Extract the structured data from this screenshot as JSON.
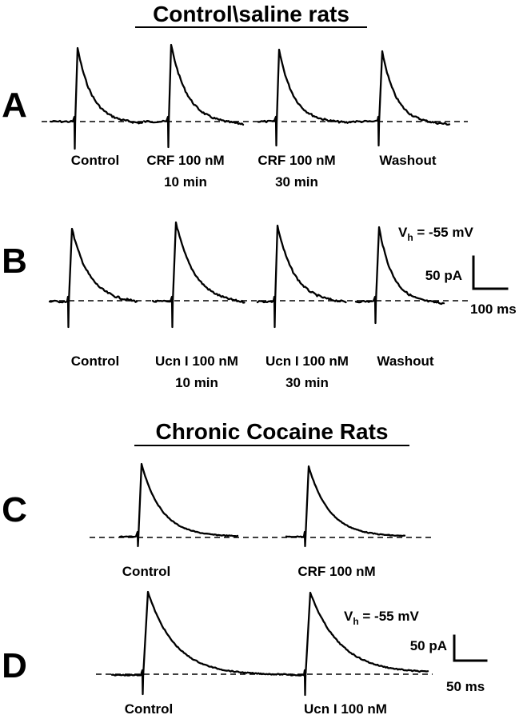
{
  "sections": [
    {
      "title": "Control\\saline rats",
      "panels": [
        {
          "letter": "A",
          "conditions": [
            {
              "line1": "Control",
              "line2": ""
            },
            {
              "line1": "CRF 100 nM",
              "line2": "10 min"
            },
            {
              "line1": "CRF 100 nM",
              "line2": "30 min"
            },
            {
              "line1": "Washout",
              "line2": ""
            }
          ]
        },
        {
          "letter": "B",
          "conditions": [
            {
              "line1": "Control",
              "line2": ""
            },
            {
              "line1": "Ucn I 100 nM",
              "line2": "10 min"
            },
            {
              "line1": "Ucn I 100 nM",
              "line2": "30 min"
            },
            {
              "line1": "Washout",
              "line2": ""
            }
          ]
        }
      ],
      "holding_potential": {
        "symbol": "V",
        "subscript": "h",
        "value": " = -55 mV"
      },
      "scale_bar": {
        "current": "50 pA",
        "time": "100 ms"
      }
    },
    {
      "title": "Chronic Cocaine Rats",
      "panels": [
        {
          "letter": "C",
          "conditions": [
            {
              "line1": "Control",
              "line2": ""
            },
            {
              "line1": "CRF 100 nM",
              "line2": ""
            }
          ]
        },
        {
          "letter": "D",
          "conditions": [
            {
              "line1": "Control",
              "line2": ""
            },
            {
              "line1": "Ucn I 100 nM",
              "line2": ""
            }
          ]
        }
      ],
      "holding_potential": {
        "symbol": "V",
        "subscript": "h",
        "value": " = -55 mV"
      },
      "scale_bar": {
        "current": "50 pA",
        "time": "50 ms"
      }
    }
  ]
}
